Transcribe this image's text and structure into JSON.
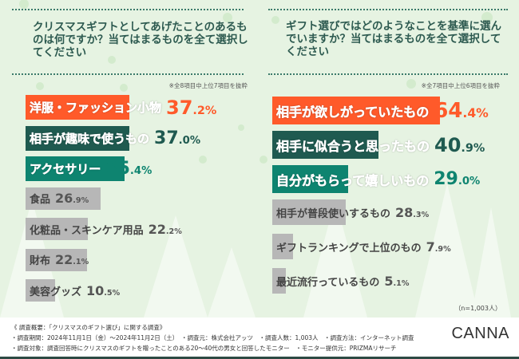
{
  "colors": {
    "orange": "#ff5a2a",
    "dark_green": "#1f5a50",
    "teal": "#0e8470",
    "gray": "#b7b7b7",
    "background": "#e6f3e2"
  },
  "chart_data": [
    {
      "type": "bar",
      "orientation": "horizontal",
      "title": "クリスマスギフトとしてあげたことのあるものは何ですか？当てはまるものを全て選択してください",
      "note": "※全8項目中上位7項目を抜粋",
      "categories": [
        "洋服・ファッション小物",
        "相手が趣味で使うもの",
        "アクセサリー",
        "食品",
        "化粧品・スキンケア用品",
        "財布",
        "美容グッズ"
      ],
      "values": [
        37.2,
        37.0,
        35.4,
        26.9,
        22.2,
        22.1,
        10.5
      ],
      "unit": "%"
    },
    {
      "type": "bar",
      "orientation": "horizontal",
      "title": "ギフト選びではどのようなことを基準に選んでいますか？当てはまるものを全て選択してください",
      "note": "※全7項目中上位6項目を抜粋",
      "categories": [
        "相手が欲しがっていたもの",
        "相手に似合うと思ったもの",
        "自分がもらって嬉しいもの",
        "相手が普段使いするもの",
        "ギフトランキングで上位のもの",
        "最近流行っているもの"
      ],
      "values": [
        64.4,
        40.9,
        29.0,
        28.3,
        7.9,
        5.1
      ],
      "unit": "%"
    }
  ],
  "sample": "（n=1,003人）",
  "footer": {
    "line1": "《 調査概要：「クリスマスのギフト選び」に関する調査》",
    "line2": "・調査期間：2024年11月1日（金）～2024年11月2日（土）　・調査元：株式会社アッツ　・調査人数：1,003人　・調査方法：インターネット調査",
    "line3": "・調査対象：調査回答時にクリスマスのギフトを贈ったことのある20～40代の男女と回答したモニター　・モニター提供元：PRIZMAリサーチ",
    "logo": "CANNA"
  }
}
